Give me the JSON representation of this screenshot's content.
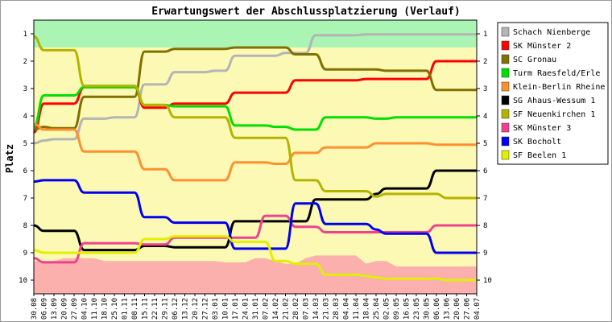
{
  "chart_data": {
    "type": "line",
    "title": "Erwartungswert der Abschlussplatzierung (Verlauf)",
    "ylabel": "Platz",
    "xlabel": "",
    "ylim": [
      10.5,
      0.5
    ],
    "y_ticks": [
      1,
      2,
      3,
      4,
      5,
      6,
      7,
      8,
      9,
      10
    ],
    "grid": false,
    "legend_position": "right",
    "x": [
      "30.08",
      "06.09",
      "13.09",
      "20.09",
      "27.09",
      "04.10",
      "11.10",
      "18.10",
      "25.10",
      "01.11",
      "08.11",
      "15.11",
      "22.11",
      "29.11",
      "06.12",
      "13.12",
      "20.12",
      "27.12",
      "03.01",
      "10.01",
      "17.01",
      "24.01",
      "31.01",
      "07.02",
      "14.02",
      "21.02",
      "28.02",
      "07.03",
      "14.03",
      "21.03",
      "28.03",
      "04.04",
      "11.04",
      "18.04",
      "25.04",
      "02.05",
      "09.05",
      "16.05",
      "23.05",
      "30.05",
      "06.06",
      "13.06",
      "20.06",
      "27.06",
      "04.07"
    ],
    "bands": [
      {
        "from": 0.5,
        "to": 1.5,
        "color": "#aaf5b4"
      },
      {
        "from": 1.5,
        "to": 10.5,
        "color": "#fcf9b4"
      }
    ],
    "relegation_area_color": "#fbb0ae",
    "relegation_area_top": [
      9.3,
      9.3,
      9.3,
      9.2,
      9.2,
      9.2,
      9.2,
      9.3,
      9.3,
      9.3,
      9.3,
      9.3,
      9.3,
      9.3,
      9.3,
      9.3,
      9.3,
      9.3,
      9.3,
      9.35,
      9.35,
      9.35,
      9.2,
      9.2,
      9.3,
      9.4,
      9.4,
      9.2,
      9.1,
      9.1,
      9.1,
      9.1,
      9.1,
      9.4,
      9.3,
      9.3,
      9.5,
      9.5,
      9.5,
      9.5,
      9.5,
      9.5,
      9.5,
      9.5,
      9.5
    ],
    "series": [
      {
        "name": "Schach Nienberge",
        "color": "#b4b4b4",
        "values": [
          5.0,
          4.9,
          4.85,
          4.85,
          4.85,
          4.1,
          4.1,
          4.1,
          4.05,
          4.05,
          4.05,
          2.85,
          2.85,
          2.85,
          2.4,
          2.4,
          2.4,
          2.4,
          2.35,
          2.35,
          1.8,
          1.8,
          1.8,
          1.8,
          1.8,
          1.7,
          1.7,
          1.7,
          1.05,
          1.05,
          1.05,
          1.05,
          1.05,
          1.02,
          1.02,
          1.02,
          1.02,
          1.02,
          1.02,
          1.02,
          1.02,
          1.02,
          1.02,
          1.02,
          1.02
        ]
      },
      {
        "name": "SK Münster 2",
        "color": "#ff0000",
        "values": [
          4.6,
          3.55,
          3.55,
          3.55,
          3.55,
          2.95,
          2.95,
          2.95,
          2.95,
          2.95,
          2.95,
          3.7,
          3.7,
          3.7,
          3.55,
          3.55,
          3.55,
          3.55,
          3.55,
          3.55,
          3.15,
          3.15,
          3.15,
          3.15,
          3.15,
          3.15,
          2.7,
          2.7,
          2.7,
          2.7,
          2.7,
          2.7,
          2.7,
          2.65,
          2.65,
          2.65,
          2.65,
          2.65,
          2.65,
          2.65,
          2.0,
          2.0,
          2.0,
          2.0,
          2.0
        ]
      },
      {
        "name": "SC Gronau",
        "color": "#807000",
        "values": [
          4.5,
          4.4,
          4.45,
          4.45,
          4.45,
          3.3,
          3.3,
          3.3,
          3.3,
          3.3,
          3.3,
          1.65,
          1.65,
          1.65,
          1.55,
          1.55,
          1.55,
          1.55,
          1.55,
          1.55,
          1.5,
          1.5,
          1.5,
          1.5,
          1.5,
          1.5,
          1.75,
          1.75,
          1.75,
          2.3,
          2.3,
          2.3,
          2.3,
          2.3,
          2.3,
          2.35,
          2.35,
          2.35,
          2.35,
          2.35,
          3.05,
          3.05,
          3.05,
          3.05,
          3.05
        ]
      },
      {
        "name": "Turm Raesfeld/Erle",
        "color": "#00e000",
        "values": [
          4.4,
          3.25,
          3.25,
          3.25,
          3.25,
          2.95,
          2.95,
          2.95,
          2.95,
          2.95,
          2.95,
          3.6,
          3.6,
          3.6,
          3.65,
          3.65,
          3.65,
          3.65,
          3.65,
          3.65,
          4.35,
          4.35,
          4.35,
          4.35,
          4.4,
          4.4,
          4.5,
          4.5,
          4.5,
          4.05,
          4.05,
          4.05,
          4.05,
          4.05,
          4.1,
          4.1,
          4.05,
          4.05,
          4.05,
          4.05,
          4.05,
          4.05,
          4.05,
          4.05,
          4.05
        ]
      },
      {
        "name": "Klein-Berlin Rheine",
        "color": "#ff9030",
        "values": [
          4.3,
          4.5,
          4.5,
          4.5,
          4.5,
          5.3,
          5.3,
          5.3,
          5.3,
          5.3,
          5.3,
          5.95,
          5.95,
          5.95,
          6.35,
          6.35,
          6.35,
          6.35,
          6.35,
          6.35,
          5.7,
          5.7,
          5.7,
          5.7,
          5.75,
          5.75,
          5.35,
          5.35,
          5.35,
          5.15,
          5.15,
          5.15,
          5.15,
          5.15,
          5.0,
          5.0,
          5.0,
          5.0,
          5.0,
          5.0,
          5.05,
          5.05,
          5.05,
          5.05,
          5.05
        ]
      },
      {
        "name": "SG Ahaus-Wessum 1",
        "color": "#000000",
        "values": [
          8.0,
          8.2,
          8.2,
          8.2,
          8.2,
          8.9,
          8.9,
          8.9,
          8.9,
          8.9,
          8.9,
          8.75,
          8.75,
          8.75,
          8.8,
          8.8,
          8.8,
          8.8,
          8.8,
          8.8,
          7.85,
          7.85,
          7.85,
          7.85,
          7.85,
          7.85,
          7.85,
          7.85,
          7.05,
          7.05,
          7.05,
          7.05,
          7.05,
          7.05,
          6.85,
          6.65,
          6.65,
          6.65,
          6.65,
          6.65,
          6.0,
          6.0,
          6.0,
          6.0,
          6.0
        ]
      },
      {
        "name": "SF Neuenkirchen 1",
        "color": "#b4b400",
        "values": [
          1.1,
          1.6,
          1.6,
          1.6,
          1.6,
          2.9,
          2.9,
          2.9,
          2.9,
          2.9,
          2.9,
          3.6,
          3.6,
          3.6,
          4.05,
          4.05,
          4.05,
          4.05,
          4.05,
          4.05,
          4.8,
          4.8,
          4.8,
          4.8,
          4.8,
          4.8,
          6.35,
          6.35,
          6.35,
          6.75,
          6.75,
          6.75,
          6.75,
          6.75,
          6.95,
          6.85,
          6.85,
          6.85,
          6.85,
          6.85,
          6.85,
          7.0,
          7.0,
          7.0,
          7.0
        ]
      },
      {
        "name": "SK Münster 3",
        "color": "#f04090",
        "values": [
          9.2,
          9.35,
          9.35,
          9.35,
          9.35,
          8.65,
          8.65,
          8.65,
          8.65,
          8.65,
          8.65,
          8.7,
          8.7,
          8.7,
          8.45,
          8.45,
          8.45,
          8.45,
          8.45,
          8.45,
          8.45,
          8.45,
          8.45,
          7.65,
          7.65,
          7.65,
          8.05,
          8.05,
          8.05,
          8.25,
          8.25,
          8.25,
          8.25,
          8.25,
          8.25,
          8.25,
          8.25,
          8.25,
          8.25,
          8.25,
          8.0,
          8.0,
          8.0,
          8.0,
          8.0
        ]
      },
      {
        "name": "SK Bocholt",
        "color": "#0000f0",
        "values": [
          6.4,
          6.35,
          6.35,
          6.35,
          6.35,
          6.8,
          6.8,
          6.8,
          6.8,
          6.8,
          6.8,
          7.7,
          7.7,
          7.7,
          7.9,
          7.9,
          7.9,
          7.9,
          7.9,
          7.9,
          8.85,
          8.85,
          8.85,
          8.85,
          8.85,
          8.85,
          7.2,
          7.2,
          7.2,
          7.95,
          7.95,
          7.95,
          7.95,
          7.95,
          8.15,
          8.3,
          8.3,
          8.3,
          8.3,
          8.3,
          9.0,
          9.0,
          9.0,
          9.0,
          9.0
        ]
      },
      {
        "name": "SF Beelen 1",
        "color": "#e0f000",
        "values": [
          8.9,
          9.0,
          9.0,
          9.0,
          9.0,
          9.0,
          9.0,
          9.0,
          9.0,
          9.0,
          9.0,
          8.5,
          8.5,
          8.5,
          8.4,
          8.4,
          8.4,
          8.4,
          8.4,
          8.4,
          8.6,
          8.6,
          8.6,
          8.6,
          9.3,
          9.3,
          9.4,
          9.4,
          9.4,
          9.8,
          9.8,
          9.8,
          9.8,
          9.85,
          9.9,
          9.95,
          9.95,
          9.95,
          9.95,
          9.95,
          9.95,
          10.0,
          10.0,
          10.0,
          10.0
        ]
      }
    ]
  }
}
